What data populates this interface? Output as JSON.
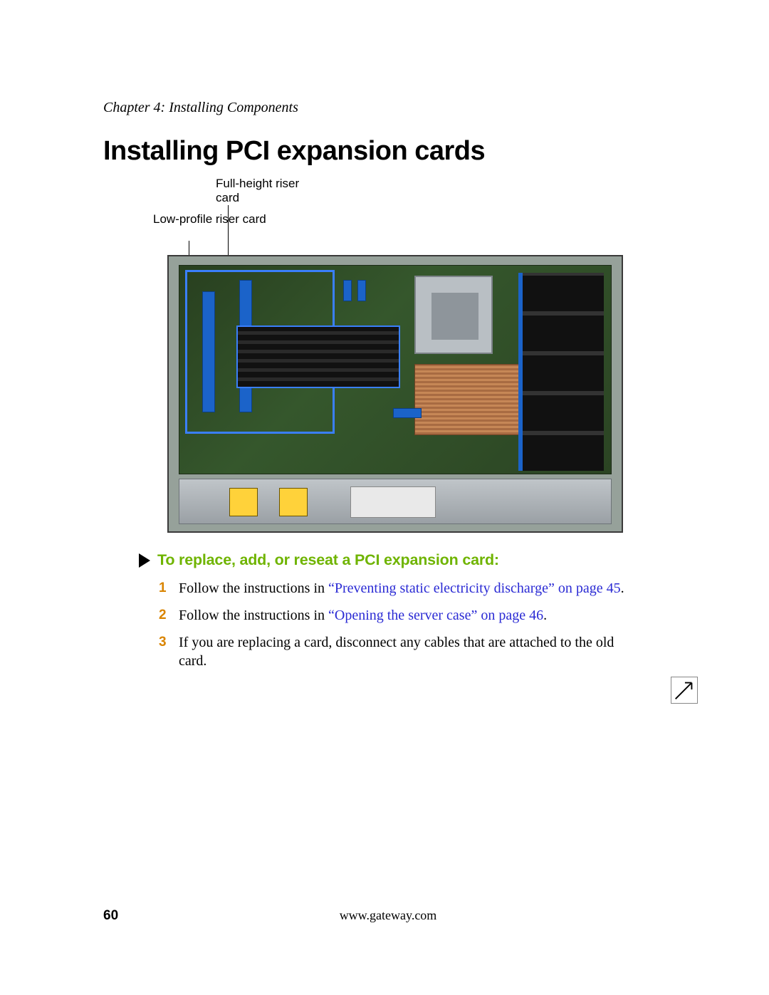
{
  "chapter_header": "Chapter 4: Installing Components",
  "title": "Installing PCI expansion cards",
  "figure": {
    "callout_full": "Full-height riser card",
    "callout_low": "Low-profile riser card",
    "highlight_color": "#3a7ffb",
    "pcb_color": "#2f4d26",
    "chassis_color": "#96a19a",
    "heatsink_color": "#b77a4a",
    "hazard_color": "#ffd23a"
  },
  "procedure": {
    "title_color": "#6fb400",
    "title": "To replace, add, or reseat a PCI expansion card:",
    "step_number_color": "#d98400",
    "link_color": "#2a2ad4",
    "steps": [
      {
        "pre": "Follow the instructions in ",
        "link": "“Preventing static electricity discharge” on page 45",
        "post": "."
      },
      {
        "pre": "Follow the instructions in ",
        "link": "“Opening the server case” on page 46",
        "post": "."
      },
      {
        "pre": "If you are replacing a card, disconnect any cables that are attached to the old card.",
        "link": "",
        "post": ""
      }
    ]
  },
  "footer": {
    "page_number": "60",
    "url": "www.gateway.com"
  }
}
